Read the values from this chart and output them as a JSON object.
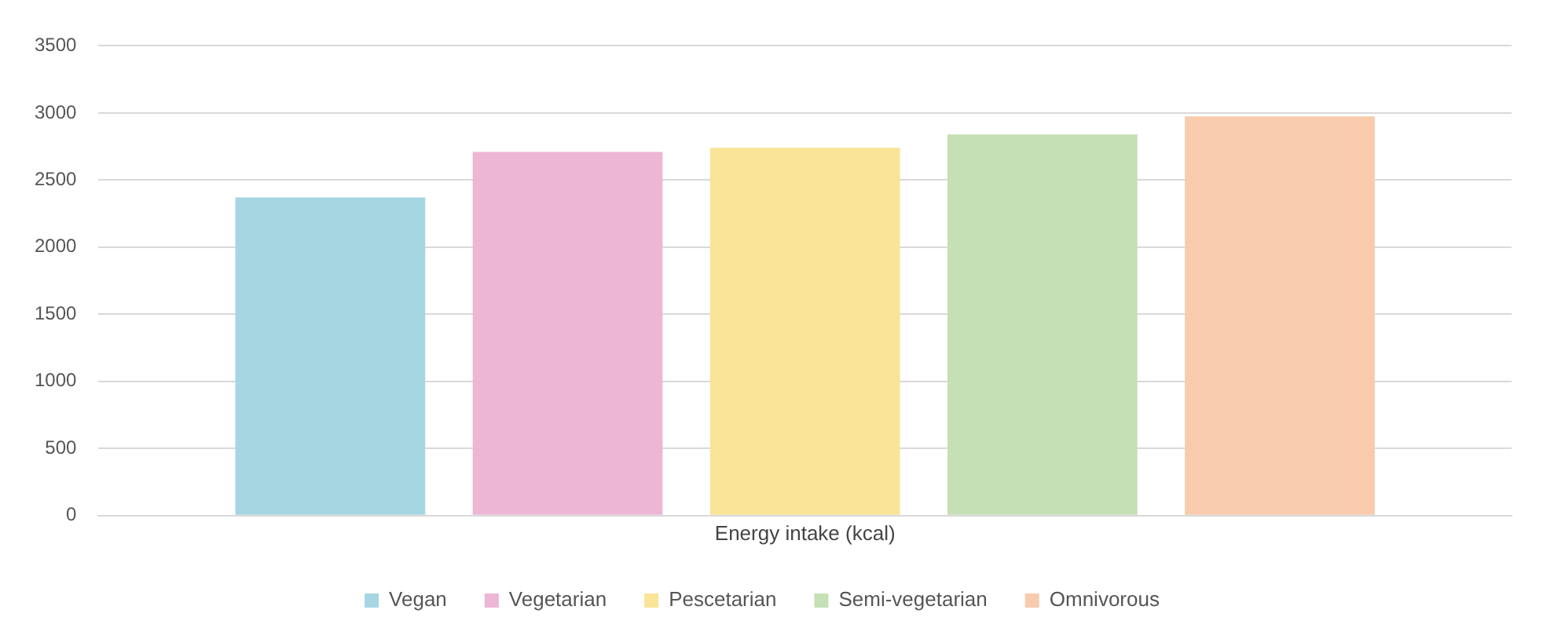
{
  "chart_data": {
    "type": "bar",
    "categories": [
      "Energy intake (kcal)"
    ],
    "series": [
      {
        "name": "Vegan",
        "color": "#a6d6e2",
        "values": [
          2370
        ]
      },
      {
        "name": "Vegetarian",
        "color": "#ecb6d4",
        "values": [
          2710
        ]
      },
      {
        "name": "Pescetarian",
        "color": "#f9e497",
        "values": [
          2740
        ]
      },
      {
        "name": "Semi-vegetarian",
        "color": "#c5e0b5",
        "values": [
          2840
        ]
      },
      {
        "name": "Omnivorous",
        "color": "#f8cbad",
        "values": [
          2975
        ]
      }
    ],
    "ylim": [
      0,
      3500
    ],
    "yticks": [
      0,
      500,
      1000,
      1500,
      2000,
      2500,
      3000,
      3500
    ],
    "grid": "y",
    "legend": "bottom"
  }
}
